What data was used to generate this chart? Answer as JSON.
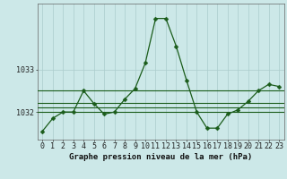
{
  "hours": [
    0,
    1,
    2,
    3,
    4,
    5,
    6,
    7,
    8,
    9,
    10,
    11,
    12,
    13,
    14,
    15,
    16,
    17,
    18,
    19,
    20,
    21,
    22,
    23
  ],
  "pressure": [
    1031.55,
    1031.85,
    1032.0,
    1032.0,
    1032.5,
    1032.2,
    1031.95,
    1032.0,
    1032.3,
    1032.55,
    1033.15,
    1034.2,
    1034.2,
    1033.55,
    1032.75,
    1032.0,
    1031.62,
    1031.62,
    1031.95,
    1032.05,
    1032.25,
    1032.5,
    1032.65,
    1032.6
  ],
  "hlines": [
    1032.0,
    1032.22,
    1032.1,
    1032.5
  ],
  "hline_color": "#1a5c1a",
  "line_color": "#1a5c1a",
  "marker_color": "#1a5c1a",
  "bg_color": "#cce8e8",
  "grid_color": "#aacccc",
  "axis_label": "Graphe pression niveau de la mer (hPa)",
  "ytick_labels": [
    "1032",
    "1033"
  ],
  "ytick_values": [
    1032,
    1033
  ],
  "ylim": [
    1031.35,
    1034.55
  ],
  "xlim": [
    -0.5,
    23.5
  ],
  "xlabel_fontsize": 6.5,
  "tick_fontsize": 6.0,
  "line_width": 1.0,
  "marker_size": 2.5
}
